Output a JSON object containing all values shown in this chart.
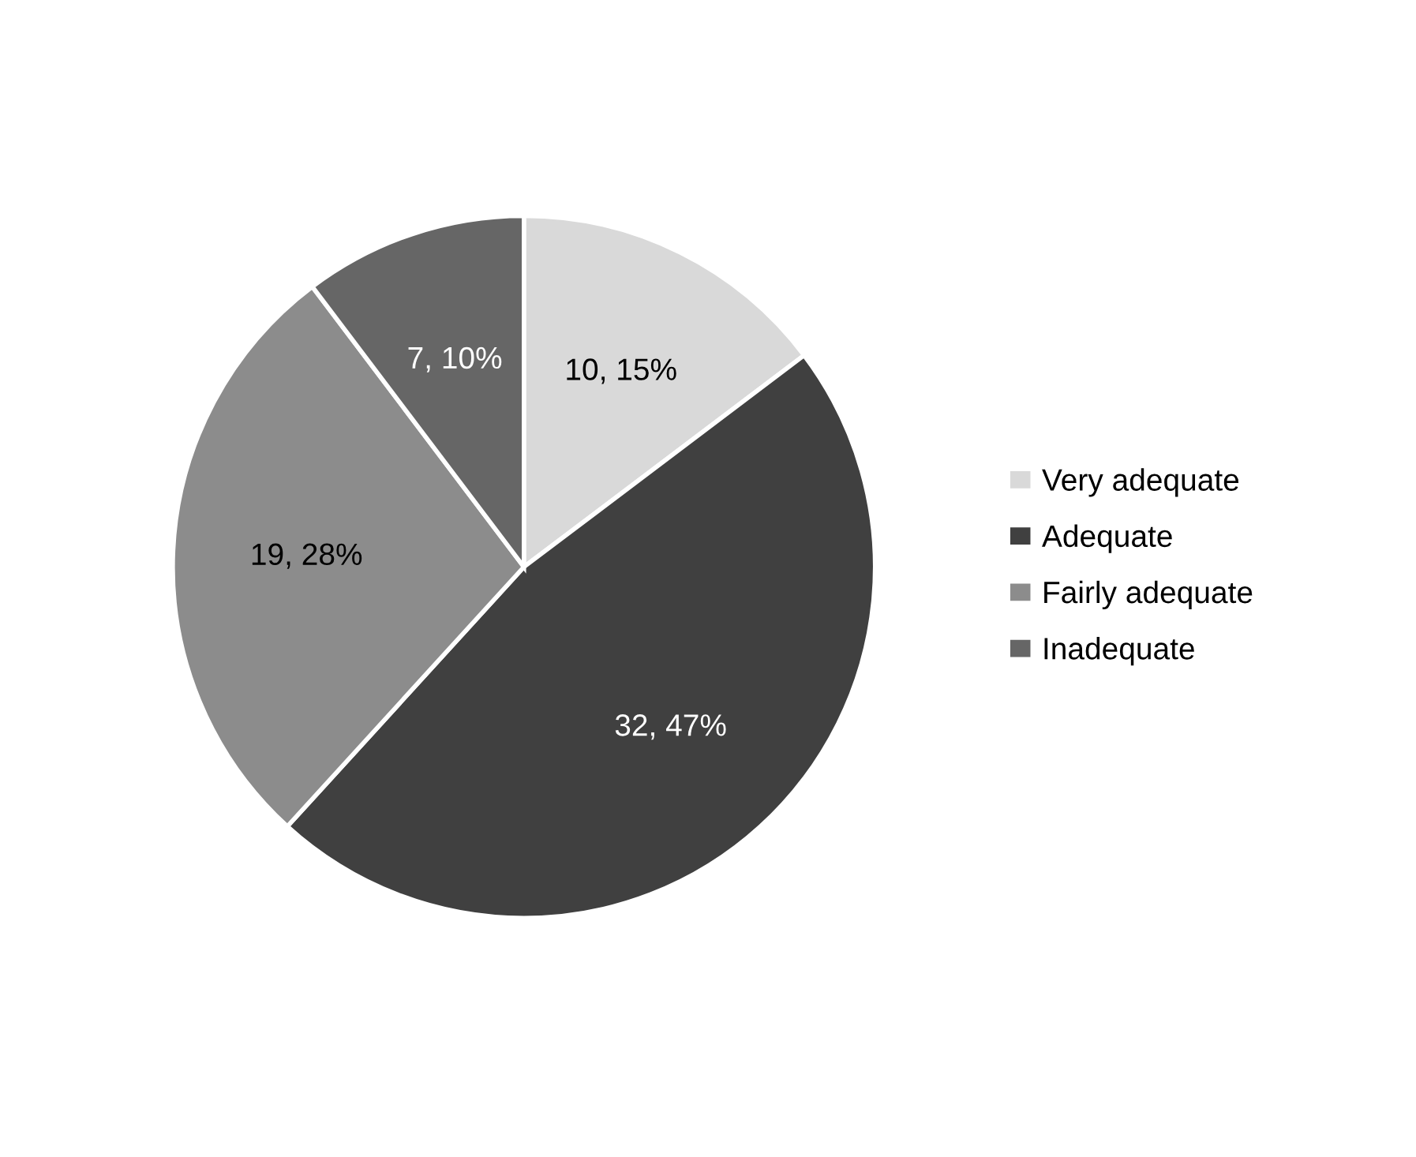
{
  "chart_data": {
    "type": "pie",
    "categories": [
      "Very adequate",
      "Adequate",
      "Fairly adequate",
      "Inadequate"
    ],
    "values": [
      10,
      32,
      19,
      7
    ],
    "colors": [
      "#d9d9d9",
      "#404040",
      "#8c8c8c",
      "#666666"
    ],
    "value_labels": [
      "10, 15%",
      "32, 47%",
      "19, 28%",
      "7, 10%"
    ],
    "legend": "right"
  }
}
